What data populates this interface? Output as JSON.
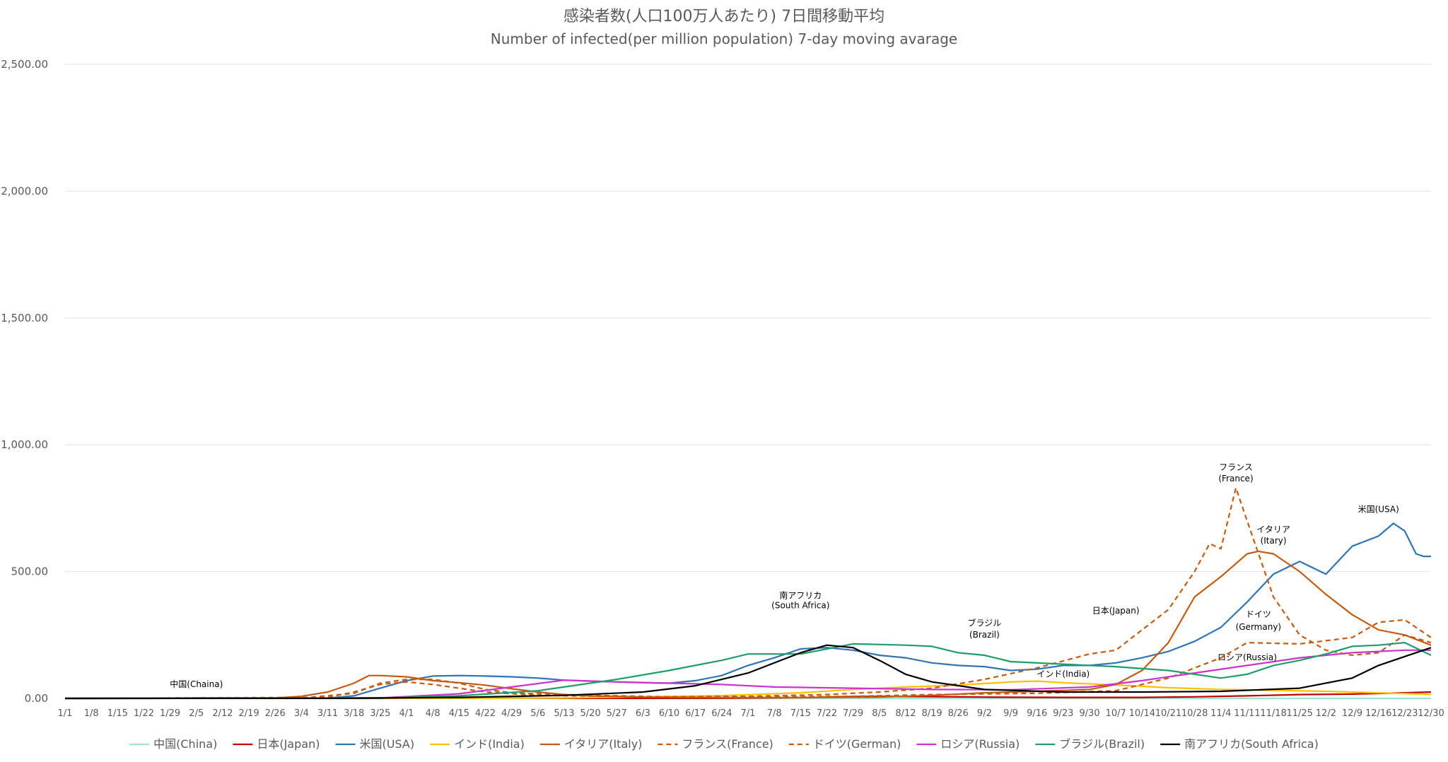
{
  "chart_data": {
    "type": "line",
    "title": "感染者数(人口100万人あたり) 7日間移動平均",
    "subtitle": "Number of infected(per million population) 7-day moving avarage",
    "ylim": [
      0,
      2500
    ],
    "yticks": [
      0,
      500,
      1000,
      1500,
      2000,
      2500
    ],
    "ytick_labels": [
      "0.00",
      "500.00",
      "1,000.00",
      "1,500.00",
      "2,000.00",
      "2,500.00"
    ],
    "grid": true,
    "legend_position": "bottom",
    "x_start": "1/1",
    "x_end": "12/30",
    "x_ticks": [
      "1/1",
      "1/8",
      "1/15",
      "1/22",
      "1/29",
      "2/5",
      "2/12",
      "2/19",
      "2/26",
      "3/4",
      "3/11",
      "3/18",
      "3/25",
      "4/1",
      "4/8",
      "4/15",
      "4/22",
      "4/29",
      "5/6",
      "5/13",
      "5/20",
      "5/27",
      "6/3",
      "6/10",
      "6/17",
      "6/24",
      "7/1",
      "7/8",
      "7/15",
      "7/22",
      "7/29",
      "8/5",
      "8/12",
      "8/19",
      "8/26",
      "9/2",
      "9/9",
      "9/16",
      "9/23",
      "9/30",
      "10/7",
      "10/14",
      "10/21",
      "10/28",
      "11/4",
      "11/11",
      "11/18",
      "11/25",
      "12/2",
      "12/9",
      "12/16",
      "12/23",
      "12/30"
    ],
    "series": [
      {
        "name": "中国(China)",
        "color": "#9ee6cf",
        "dashed": false,
        "points": [
          [
            "1/1",
            0
          ],
          [
            "1/22",
            0.1
          ],
          [
            "1/29",
            1
          ],
          [
            "2/5",
            2.5
          ],
          [
            "2/12",
            2.5
          ],
          [
            "2/19",
            1
          ],
          [
            "2/26",
            0.3
          ],
          [
            "3/11",
            0.1
          ],
          [
            "12/30",
            0.1
          ]
        ]
      },
      {
        "name": "日本(Japan)",
        "color": "#c00000",
        "dashed": false,
        "points": [
          [
            "1/1",
            0
          ],
          [
            "3/4",
            0.5
          ],
          [
            "4/8",
            3
          ],
          [
            "4/15",
            4
          ],
          [
            "5/6",
            1
          ],
          [
            "5/20",
            0.3
          ],
          [
            "6/24",
            0.5
          ],
          [
            "7/15",
            3
          ],
          [
            "7/29",
            7
          ],
          [
            "8/5",
            8
          ],
          [
            "8/19",
            7
          ],
          [
            "9/2",
            5
          ],
          [
            "9/23",
            4
          ],
          [
            "10/14",
            4
          ],
          [
            "10/28",
            6
          ],
          [
            "11/11",
            10
          ],
          [
            "11/25",
            15
          ],
          [
            "12/9",
            17
          ],
          [
            "12/23",
            22
          ],
          [
            "12/30",
            25
          ]
        ]
      },
      {
        "name": "米国(USA)",
        "color": "#2e75b6",
        "dashed": false,
        "points": [
          [
            "1/1",
            0
          ],
          [
            "3/11",
            1
          ],
          [
            "3/18",
            10
          ],
          [
            "3/25",
            40
          ],
          [
            "4/1",
            70
          ],
          [
            "4/8",
            88
          ],
          [
            "4/15",
            90
          ],
          [
            "4/22",
            88
          ],
          [
            "4/29",
            85
          ],
          [
            "5/6",
            80
          ],
          [
            "5/13",
            72
          ],
          [
            "5/20",
            68
          ],
          [
            "5/27",
            65
          ],
          [
            "6/3",
            62
          ],
          [
            "6/10",
            60
          ],
          [
            "6/17",
            70
          ],
          [
            "6/24",
            90
          ],
          [
            "7/1",
            130
          ],
          [
            "7/8",
            160
          ],
          [
            "7/15",
            195
          ],
          [
            "7/22",
            200
          ],
          [
            "7/29",
            190
          ],
          [
            "8/5",
            170
          ],
          [
            "8/12",
            160
          ],
          [
            "8/19",
            140
          ],
          [
            "8/26",
            130
          ],
          [
            "9/2",
            125
          ],
          [
            "9/9",
            110
          ],
          [
            "9/16",
            115
          ],
          [
            "9/23",
            130
          ],
          [
            "9/30",
            130
          ],
          [
            "10/7",
            140
          ],
          [
            "10/14",
            160
          ],
          [
            "10/21",
            185
          ],
          [
            "10/28",
            225
          ],
          [
            "11/4",
            280
          ],
          [
            "11/11",
            380
          ],
          [
            "11/18",
            490
          ],
          [
            "11/25",
            540
          ],
          [
            "12/2",
            490
          ],
          [
            "12/9",
            600
          ],
          [
            "12/16",
            640
          ],
          [
            "12/20",
            690
          ],
          [
            "12/23",
            660
          ],
          [
            "12/26",
            570
          ],
          [
            "12/28",
            560
          ],
          [
            "12/30",
            560
          ]
        ]
      },
      {
        "name": "インド(India)",
        "color": "#ffc000",
        "dashed": false,
        "points": [
          [
            "1/1",
            0
          ],
          [
            "3/25",
            0.1
          ],
          [
            "4/15",
            0.5
          ],
          [
            "5/13",
            2
          ],
          [
            "6/3",
            6
          ],
          [
            "6/24",
            11
          ],
          [
            "7/15",
            22
          ],
          [
            "7/29",
            35
          ],
          [
            "8/12",
            45
          ],
          [
            "8/26",
            52
          ],
          [
            "9/9",
            65
          ],
          [
            "9/16",
            68
          ],
          [
            "9/23",
            62
          ],
          [
            "10/7",
            53
          ],
          [
            "10/21",
            42
          ],
          [
            "11/4",
            35
          ],
          [
            "11/18",
            32
          ],
          [
            "12/2",
            28
          ],
          [
            "12/16",
            22
          ],
          [
            "12/30",
            16
          ]
        ]
      },
      {
        "name": "イタリア(Italy)",
        "color": "#c55a11",
        "dashed": false,
        "points": [
          [
            "1/1",
            0
          ],
          [
            "2/26",
            2
          ],
          [
            "3/4",
            8
          ],
          [
            "3/11",
            25
          ],
          [
            "3/18",
            60
          ],
          [
            "3/22",
            90
          ],
          [
            "3/25",
            90
          ],
          [
            "4/1",
            85
          ],
          [
            "4/8",
            70
          ],
          [
            "4/15",
            62
          ],
          [
            "4/22",
            52
          ],
          [
            "4/29",
            38
          ],
          [
            "5/6",
            25
          ],
          [
            "5/13",
            15
          ],
          [
            "5/20",
            10
          ],
          [
            "5/27",
            8
          ],
          [
            "6/3",
            5
          ],
          [
            "6/24",
            3
          ],
          [
            "7/15",
            3
          ],
          [
            "8/5",
            5
          ],
          [
            "8/19",
            12
          ],
          [
            "9/2",
            22
          ],
          [
            "9/16",
            28
          ],
          [
            "9/30",
            35
          ],
          [
            "10/7",
            55
          ],
          [
            "10/14",
            110
          ],
          [
            "10/21",
            220
          ],
          [
            "10/28",
            400
          ],
          [
            "11/4",
            480
          ],
          [
            "11/11",
            570
          ],
          [
            "11/14",
            580
          ],
          [
            "11/18",
            570
          ],
          [
            "11/25",
            500
          ],
          [
            "12/2",
            410
          ],
          [
            "12/9",
            330
          ],
          [
            "12/16",
            270
          ],
          [
            "12/23",
            250
          ],
          [
            "12/30",
            210
          ]
        ]
      },
      {
        "name": "フランス(France)",
        "color": "#c55a11",
        "dashed": true,
        "points": [
          [
            "1/1",
            0
          ],
          [
            "3/4",
            1
          ],
          [
            "3/18",
            20
          ],
          [
            "3/25",
            60
          ],
          [
            "4/1",
            75
          ],
          [
            "4/8",
            75
          ],
          [
            "4/15",
            60
          ],
          [
            "4/22",
            35
          ],
          [
            "4/29",
            22
          ],
          [
            "5/13",
            15
          ],
          [
            "5/27",
            10
          ],
          [
            "6/10",
            6
          ],
          [
            "7/1",
            8
          ],
          [
            "7/22",
            15
          ],
          [
            "8/5",
            25
          ],
          [
            "8/19",
            40
          ],
          [
            "9/2",
            75
          ],
          [
            "9/16",
            120
          ],
          [
            "9/30",
            175
          ],
          [
            "10/7",
            190
          ],
          [
            "10/14",
            270
          ],
          [
            "10/21",
            350
          ],
          [
            "10/28",
            500
          ],
          [
            "11/1",
            610
          ],
          [
            "11/4",
            590
          ],
          [
            "11/8",
            830
          ],
          [
            "11/11",
            700
          ],
          [
            "11/18",
            400
          ],
          [
            "11/25",
            250
          ],
          [
            "12/2",
            190
          ],
          [
            "12/9",
            170
          ],
          [
            "12/16",
            180
          ],
          [
            "12/23",
            250
          ],
          [
            "12/30",
            220
          ]
        ]
      },
      {
        "name": "ドイツ(German)",
        "color": "#c55a11",
        "dashed": true,
        "points": [
          [
            "1/1",
            0
          ],
          [
            "3/11",
            4
          ],
          [
            "3/18",
            25
          ],
          [
            "3/25",
            55
          ],
          [
            "4/1",
            65
          ],
          [
            "4/8",
            55
          ],
          [
            "4/15",
            40
          ],
          [
            "4/22",
            25
          ],
          [
            "5/6",
            12
          ],
          [
            "6/3",
            6
          ],
          [
            "7/1",
            5
          ],
          [
            "7/29",
            8
          ],
          [
            "8/19",
            15
          ],
          [
            "9/16",
            20
          ],
          [
            "10/7",
            30
          ],
          [
            "10/21",
            80
          ],
          [
            "11/4",
            160
          ],
          [
            "11/11",
            220
          ],
          [
            "11/25",
            215
          ],
          [
            "12/9",
            240
          ],
          [
            "12/16",
            300
          ],
          [
            "12/23",
            310
          ],
          [
            "12/30",
            240
          ]
        ]
      },
      {
        "name": "ロシア(Russia)",
        "color": "#cc33cc",
        "dashed": false,
        "points": [
          [
            "1/1",
            0
          ],
          [
            "3/25",
            2
          ],
          [
            "4/15",
            18
          ],
          [
            "4/29",
            45
          ],
          [
            "5/13",
            72
          ],
          [
            "5/27",
            65
          ],
          [
            "6/10",
            60
          ],
          [
            "6/24",
            55
          ],
          [
            "7/8",
            45
          ],
          [
            "7/29",
            40
          ],
          [
            "8/19",
            35
          ],
          [
            "9/9",
            34
          ],
          [
            "9/30",
            45
          ],
          [
            "10/14",
            70
          ],
          [
            "10/28",
            100
          ],
          [
            "11/11",
            130
          ],
          [
            "11/25",
            160
          ],
          [
            "12/9",
            180
          ],
          [
            "12/23",
            190
          ],
          [
            "12/30",
            190
          ]
        ]
      },
      {
        "name": "ブラジル(Brazil)",
        "color": "#1e9e6b",
        "dashed": false,
        "points": [
          [
            "1/1",
            0
          ],
          [
            "3/25",
            1
          ],
          [
            "4/15",
            10
          ],
          [
            "5/6",
            30
          ],
          [
            "5/27",
            75
          ],
          [
            "6/10",
            110
          ],
          [
            "6/24",
            150
          ],
          [
            "7/1",
            175
          ],
          [
            "7/15",
            175
          ],
          [
            "7/29",
            215
          ],
          [
            "8/12",
            210
          ],
          [
            "8/19",
            205
          ],
          [
            "8/26",
            180
          ],
          [
            "9/2",
            170
          ],
          [
            "9/9",
            145
          ],
          [
            "9/23",
            135
          ],
          [
            "10/7",
            125
          ],
          [
            "10/21",
            110
          ],
          [
            "11/4",
            80
          ],
          [
            "11/11",
            95
          ],
          [
            "11/18",
            130
          ],
          [
            "11/25",
            150
          ],
          [
            "12/2",
            175
          ],
          [
            "12/9",
            205
          ],
          [
            "12/16",
            210
          ],
          [
            "12/23",
            220
          ],
          [
            "12/30",
            170
          ]
        ]
      },
      {
        "name": "南アフリカ(South Africa)",
        "color": "#000000",
        "dashed": false,
        "points": [
          [
            "1/1",
            0
          ],
          [
            "3/18",
            0.5
          ],
          [
            "4/15",
            4
          ],
          [
            "5/13",
            12
          ],
          [
            "6/3",
            25
          ],
          [
            "6/17",
            50
          ],
          [
            "7/1",
            100
          ],
          [
            "7/15",
            180
          ],
          [
            "7/22",
            210
          ],
          [
            "7/29",
            200
          ],
          [
            "8/5",
            150
          ],
          [
            "8/12",
            95
          ],
          [
            "8/19",
            65
          ],
          [
            "9/2",
            35
          ],
          [
            "9/23",
            25
          ],
          [
            "10/14",
            25
          ],
          [
            "11/4",
            28
          ],
          [
            "11/25",
            40
          ],
          [
            "12/9",
            80
          ],
          [
            "12/16",
            130
          ],
          [
            "12/23",
            165
          ],
          [
            "12/30",
            200
          ]
        ]
      }
    ],
    "annotations": [
      {
        "text": "中国(Chaina)",
        "x": "2/5",
        "y": 45
      },
      {
        "text": "南アフリカ",
        "x": "7/15",
        "y": 395
      },
      {
        "text": "(South Africa)",
        "x": "7/15",
        "y": 355
      },
      {
        "text": "ブラジル",
        "x": "9/2",
        "y": 285
      },
      {
        "text": "(Brazil)",
        "x": "9/2",
        "y": 240
      },
      {
        "text": "日本(Japan)",
        "x": "10/7",
        "y": 335
      },
      {
        "text": "インド(India)",
        "x": "9/23",
        "y": 85
      },
      {
        "text": "フランス",
        "x": "11/8",
        "y": 900
      },
      {
        "text": "(France)",
        "x": "11/8",
        "y": 855
      },
      {
        "text": "イタリア",
        "x": "11/18",
        "y": 655
      },
      {
        "text": "(Itary)",
        "x": "11/18",
        "y": 610
      },
      {
        "text": "米国(USA)",
        "x": "12/16",
        "y": 735
      },
      {
        "text": "ドイツ",
        "x": "11/14",
        "y": 320
      },
      {
        "text": "(Germany)",
        "x": "11/14",
        "y": 270
      },
      {
        "text": "ロシア(Russia)",
        "x": "11/11",
        "y": 150
      }
    ]
  }
}
